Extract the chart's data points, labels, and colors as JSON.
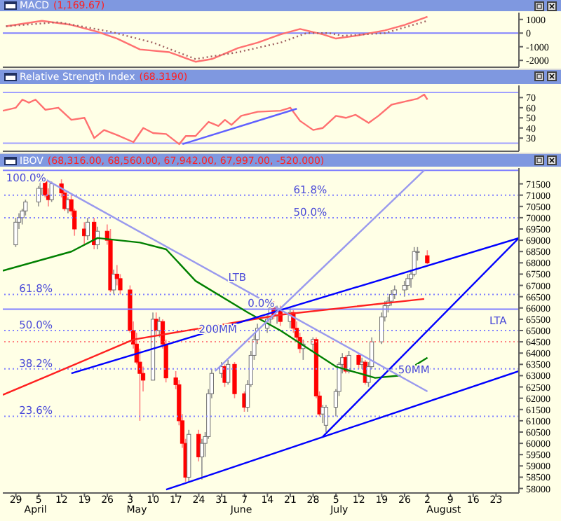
{
  "chart_data": [
    {
      "type": "line",
      "title": "MACD",
      "subtitle": "(1,169.67)",
      "tick_labels": "y",
      "xlim": [
        "--03-25",
        "--08-30"
      ],
      "ylim": [
        -2500,
        1500
      ],
      "yticks": [
        1000,
        0,
        -1000,
        -2000
      ],
      "ref_lines": [
        {
          "axis": "y",
          "value": 0,
          "color": "#8080ff",
          "line_style": "solid"
        }
      ],
      "series": [
        {
          "type": "line",
          "color": "#ff7070",
          "line_style": "solid",
          "x": [
            "--03-26",
            "--04-06",
            "--04-15",
            "--04-23",
            "--04-29",
            "--05-06",
            "--05-15",
            "--05-23",
            "--05-28",
            "--06-05",
            "--06-11",
            "--06-18",
            "--06-24",
            "--07-01",
            "--07-05",
            "--07-11",
            "--07-20",
            "--07-26",
            "--08-02"
          ],
          "values": [
            500,
            900,
            600,
            100,
            -400,
            -1200,
            -1400,
            -2100,
            -1900,
            -1100,
            -700,
            -100,
            300,
            -100,
            -400,
            -200,
            200,
            600,
            1200
          ]
        },
        {
          "type": "line",
          "color": "#a06060",
          "line_style": "dotted",
          "x": [
            "--03-26",
            "--04-11",
            "--04-27",
            "--05-10",
            "--05-23",
            "--06-05",
            "--06-18",
            "--06-26",
            "--07-03",
            "--07-07",
            "--07-20",
            "--08-02"
          ],
          "values": [
            500,
            800,
            100,
            -700,
            -1900,
            -1400,
            -700,
            0,
            0,
            -200,
            0,
            900
          ]
        }
      ]
    },
    {
      "type": "line",
      "title": "Relative Strength Index",
      "subtitle": "(68.3190)",
      "tick_labels": "y",
      "xlim": [
        "--03-25",
        "--08-30"
      ],
      "ylim": [
        17,
        82
      ],
      "yticks": [
        30,
        40,
        50,
        60,
        70
      ],
      "ref_lines": [
        {
          "axis": "y",
          "value": 75,
          "color": "#a0a0ff",
          "line_style": "solid"
        },
        {
          "axis": "y",
          "value": 25,
          "color": "#a0a0ff",
          "line_style": "solid"
        }
      ],
      "series": [
        {
          "type": "line",
          "color": "#ff7070",
          "line_style": "solid",
          "x": [
            "--03-25",
            "--03-29",
            "--03-31",
            "--04-02",
            "--04-04",
            "--04-07",
            "--04-11",
            "--04-15",
            "--04-19",
            "--04-22",
            "--04-25",
            "--04-29",
            "--05-04",
            "--05-07",
            "--05-10",
            "--05-14",
            "--05-18",
            "--05-20",
            "--05-23",
            "--05-27",
            "--05-30",
            "--06-01",
            "--06-03",
            "--06-06",
            "--06-11",
            "--06-18",
            "--06-21",
            "--06-24",
            "--06-28",
            "--07-01",
            "--07-05",
            "--07-08",
            "--07-11",
            "--07-15",
            "--07-18",
            "--07-22",
            "--07-26",
            "--07-30",
            "--08-01",
            "--08-02"
          ],
          "values": [
            57,
            60,
            68,
            65,
            68,
            58,
            60,
            48,
            50,
            30,
            38,
            33,
            26,
            40,
            35,
            34,
            24,
            32,
            32,
            46,
            42,
            48,
            43,
            52,
            56,
            57,
            60,
            47,
            38,
            40,
            52,
            50,
            53,
            45,
            52,
            63,
            66,
            69,
            73,
            68
          ]
        },
        {
          "type": "line",
          "color": "#6060ff",
          "line_style": "solid",
          "x": [
            "--05-19",
            "--06-23"
          ],
          "values": [
            24,
            59
          ]
        }
      ]
    },
    {
      "type": "candlestick",
      "title": "IBOV",
      "subtitle": "(68,316.00, 68,560.00, 67,942.00, 67,997.00, -520.000)",
      "xlim": [
        "--03-25",
        "--08-30"
      ],
      "ylim": [
        57800,
        72200
      ],
      "xticks": [
        {
          "value": "--03-29",
          "label": "29"
        },
        {
          "value": "--04-05",
          "label": "5"
        },
        {
          "value": "--04-12",
          "label": "12"
        },
        {
          "value": "--04-19",
          "label": "19"
        },
        {
          "value": "--04-26",
          "label": "26"
        },
        {
          "value": "--05-03",
          "label": "3"
        },
        {
          "value": "--05-10",
          "label": "10"
        },
        {
          "value": "--05-17",
          "label": "17"
        },
        {
          "value": "--05-24",
          "label": "24"
        },
        {
          "value": "--05-31",
          "label": "31"
        },
        {
          "value": "--06-07",
          "label": "7"
        },
        {
          "value": "--06-14",
          "label": "14"
        },
        {
          "value": "--06-21",
          "label": "21"
        },
        {
          "value": "--06-28",
          "label": "28"
        },
        {
          "value": "--07-05",
          "label": "5"
        },
        {
          "value": "--07-12",
          "label": "12"
        },
        {
          "value": "--07-19",
          "label": "19"
        },
        {
          "value": "--07-26",
          "label": "26"
        },
        {
          "value": "--08-02",
          "label": "2"
        },
        {
          "value": "--08-09",
          "label": "9"
        },
        {
          "value": "--08-16",
          "label": "16"
        },
        {
          "value": "--08-23",
          "label": "23"
        }
      ],
      "yticks": [
        58000,
        58500,
        59000,
        59500,
        60000,
        60500,
        61000,
        61500,
        62000,
        62500,
        63000,
        63500,
        64000,
        64500,
        65000,
        65500,
        66000,
        66500,
        67000,
        67500,
        68000,
        68500,
        69000,
        69500,
        70000,
        70500,
        71000,
        71500
      ],
      "x": [
        "--03-29",
        "--03-30",
        "--03-31",
        "--04-01",
        "--04-05",
        "--04-06",
        "--04-07",
        "--04-08",
        "--04-09",
        "--04-12",
        "--04-13",
        "--04-14",
        "--04-15",
        "--04-16",
        "--04-19",
        "--04-20",
        "--04-22",
        "--04-23",
        "--04-26",
        "--04-27",
        "--04-28",
        "--04-29",
        "--04-30",
        "--05-03",
        "--05-04",
        "--05-05",
        "--05-06",
        "--05-07",
        "--05-10",
        "--05-11",
        "--05-12",
        "--05-13",
        "--05-14",
        "--05-17",
        "--05-18",
        "--05-19",
        "--05-20",
        "--05-21",
        "--05-24",
        "--05-25",
        "--05-26",
        "--05-27",
        "--05-28",
        "--05-31",
        "--06-01",
        "--06-02",
        "--06-04",
        "--06-07",
        "--06-08",
        "--06-09",
        "--06-10",
        "--06-11",
        "--06-14",
        "--06-15",
        "--06-16",
        "--06-17",
        "--06-18",
        "--06-21",
        "--06-22",
        "--06-23",
        "--06-24",
        "--06-25",
        "--06-28",
        "--06-29",
        "--06-30",
        "--07-01",
        "--07-02",
        "--07-05",
        "--07-06",
        "--07-07",
        "--07-08",
        "--07-09",
        "--07-12",
        "--07-13",
        "--07-14",
        "--07-15",
        "--07-16",
        "--07-19",
        "--07-20",
        "--07-21",
        "--07-22",
        "--07-23",
        "--07-26",
        "--07-27",
        "--07-28",
        "--07-29",
        "--07-30",
        "--08-02"
      ],
      "ohlc": [
        [
          68800,
          70000,
          68700,
          69800
        ],
        [
          69800,
          70200,
          69500,
          70000
        ],
        [
          70000,
          70400,
          69700,
          70300
        ],
        [
          70300,
          70800,
          70100,
          70700
        ],
        [
          70700,
          71400,
          70500,
          71300
        ],
        [
          71300,
          71800,
          71000,
          71600
        ],
        [
          71600,
          71700,
          70900,
          71000
        ],
        [
          71000,
          71300,
          70500,
          70800
        ],
        [
          70800,
          71600,
          70700,
          71500
        ],
        [
          71500,
          71700,
          70900,
          71100
        ],
        [
          71100,
          71200,
          70300,
          70400
        ],
        [
          70400,
          70900,
          70200,
          70800
        ],
        [
          70800,
          71000,
          70100,
          70300
        ],
        [
          70300,
          70400,
          69200,
          69500
        ],
        [
          69500,
          69800,
          68800,
          69200
        ],
        [
          69200,
          70000,
          69000,
          69800
        ],
        [
          69800,
          70000,
          68600,
          68800
        ],
        [
          68800,
          69600,
          68600,
          69400
        ],
        [
          69400,
          69700,
          68800,
          69000
        ],
        [
          69000,
          69500,
          66700,
          66800
        ],
        [
          66800,
          67700,
          66600,
          67500
        ],
        [
          67500,
          67900,
          67000,
          67300
        ],
        [
          67300,
          67500,
          66600,
          66800
        ],
        [
          66800,
          67000,
          64900,
          65000
        ],
        [
          65000,
          65400,
          64200,
          64400
        ],
        [
          64400,
          64900,
          63500,
          63600
        ],
        [
          63600,
          64200,
          61000,
          63100
        ],
        [
          63100,
          63400,
          62300,
          62800
        ],
        [
          62800,
          65800,
          62800,
          65500
        ],
        [
          65500,
          65800,
          64800,
          65000
        ],
        [
          65000,
          65600,
          64700,
          65400
        ],
        [
          65400,
          65500,
          64200,
          64400
        ],
        [
          64400,
          64600,
          62700,
          62900
        ],
        [
          62900,
          63200,
          62400,
          62600
        ],
        [
          62600,
          62800,
          60800,
          61000
        ],
        [
          61000,
          61300,
          59800,
          60000
        ],
        [
          60000,
          60200,
          58300,
          58500
        ],
        [
          58500,
          60600,
          58300,
          60400
        ],
        [
          60400,
          60600,
          59200,
          59400
        ],
        [
          59400,
          60200,
          58400,
          60000
        ],
        [
          60000,
          60500,
          59400,
          60300
        ],
        [
          60300,
          62400,
          60200,
          62200
        ],
        [
          62200,
          63300,
          62000,
          63100
        ],
        [
          63100,
          63600,
          62900,
          63400
        ],
        [
          63400,
          63500,
          62500,
          62700
        ],
        [
          62700,
          63700,
          62600,
          63500
        ],
        [
          63500,
          63600,
          62000,
          62200
        ],
        [
          62200,
          62300,
          61400,
          61600
        ],
        [
          61600,
          62800,
          61400,
          62600
        ],
        [
          62600,
          64100,
          62500,
          63900
        ],
        [
          63900,
          64800,
          63700,
          64600
        ],
        [
          64600,
          65300,
          64400,
          65100
        ],
        [
          65100,
          65700,
          64900,
          65500
        ],
        [
          65500,
          66200,
          65300,
          66000
        ],
        [
          66000,
          66300,
          65500,
          65700
        ],
        [
          65700,
          66100,
          65300,
          65900
        ],
        [
          65900,
          66100,
          65200,
          65400
        ],
        [
          65400,
          66000,
          65100,
          65800
        ],
        [
          65800,
          65900,
          64900,
          65100
        ],
        [
          65100,
          65400,
          64500,
          64700
        ],
        [
          64700,
          64900,
          64000,
          64200
        ],
        [
          64200,
          64600,
          63700,
          64400
        ],
        [
          64400,
          64700,
          64100,
          64600
        ],
        [
          64600,
          64700,
          62000,
          62100
        ],
        [
          62100,
          62300,
          61200,
          61300
        ],
        [
          61300,
          61700,
          60900,
          61600
        ],
        [
          60800,
          61700,
          60500,
          61600
        ],
        [
          61600,
          62400,
          61200,
          62300
        ],
        [
          62300,
          63600,
          62100,
          63500
        ],
        [
          63500,
          64000,
          63100,
          63800
        ],
        [
          63800,
          63900,
          63100,
          63200
        ],
        [
          63200,
          64100,
          63100,
          63900
        ],
        [
          63900,
          64000,
          63300,
          63500
        ],
        [
          63500,
          63800,
          63300,
          63600
        ],
        [
          63600,
          63700,
          62600,
          62700
        ],
        [
          62700,
          63600,
          62500,
          63400
        ],
        [
          63400,
          64700,
          63300,
          64500
        ],
        [
          64500,
          65800,
          64400,
          65600
        ],
        [
          65600,
          66300,
          65400,
          66100
        ],
        [
          66100,
          66500,
          65800,
          66300
        ],
        [
          66300,
          66800,
          66100,
          66600
        ],
        [
          66600,
          67000,
          66400,
          66800
        ],
        [
          66800,
          67200,
          66500,
          67000
        ],
        [
          67000,
          67500,
          66800,
          67300
        ],
        [
          67300,
          67700,
          66900,
          67500
        ],
        [
          67500,
          68700,
          67400,
          68500
        ],
        [
          68500,
          68700,
          68100,
          68500
        ],
        [
          68316,
          68560,
          67942,
          67997
        ]
      ],
      "series": [
        {
          "type": "line",
          "color": "#008000",
          "x": [
            "--03-25",
            "--04-15",
            "--04-23",
            "--05-06",
            "--05-14",
            "--05-23",
            "--06-08",
            "--06-18",
            "--07-05",
            "--07-17",
            "--07-24",
            "--08-02"
          ],
          "values": [
            67650,
            68500,
            69100,
            68900,
            68600,
            67200,
            65800,
            65000,
            63400,
            62900,
            63000,
            63800
          ]
        },
        {
          "type": "line",
          "color": "#ff2020",
          "x": [
            "--03-25",
            "--04-08",
            "--05-04",
            "--06-18",
            "--08-01"
          ],
          "values": [
            62150,
            63000,
            64600,
            65700,
            66400
          ]
        },
        {
          "type": "line",
          "color": "#0000ff",
          "x": [
            "--04-15",
            "--08-30"
          ],
          "values": [
            63100,
            69100
          ]
        },
        {
          "type": "line",
          "color": "#0000ff",
          "x": [
            "--05-14",
            "--08-30"
          ],
          "values": [
            57950,
            63200
          ]
        },
        {
          "type": "line",
          "color": "#0000ff",
          "x": [
            "--07-01",
            "--08-30"
          ],
          "values": [
            60300,
            69100
          ]
        },
        {
          "type": "line",
          "color": "#9999ee",
          "x": [
            "--04-07",
            "--08-02"
          ],
          "values": [
            71700,
            62300
          ]
        },
        {
          "type": "line",
          "color": "#9999ee",
          "x": [
            "--05-29",
            "--08-01"
          ],
          "values": [
            63200,
            72100
          ]
        }
      ],
      "ref_lines": [
        {
          "axis": "y",
          "value": 72100,
          "color": "#8080ff",
          "line_style": "solid"
        },
        {
          "axis": "y",
          "value": 71000,
          "color": "#8080ff",
          "line_style": "dotted"
        },
        {
          "axis": "y",
          "value": 70000,
          "color": "#8080ff",
          "line_style": "dotted"
        },
        {
          "axis": "y",
          "value": 66600,
          "color": "#8080ff",
          "line_style": "dotted"
        },
        {
          "axis": "y",
          "value": 65950,
          "color": "#8080ff",
          "line_style": "solid"
        },
        {
          "axis": "y",
          "value": 65000,
          "color": "#8080ff",
          "line_style": "dotted"
        },
        {
          "axis": "y",
          "value": 64500,
          "color": "#ff8080",
          "line_style": "dotted"
        },
        {
          "axis": "y",
          "value": 63300,
          "color": "#8080ff",
          "line_style": "dotted"
        },
        {
          "axis": "y",
          "value": 61200,
          "color": "#8080ff",
          "line_style": "dotted"
        }
      ],
      "annotations": [
        {
          "text": "100.0%",
          "x": "--03-26",
          "y": 72100
        },
        {
          "text": "61.8%",
          "x": "--03-30",
          "y": 66600
        },
        {
          "text": "50.0%",
          "x": "--03-30",
          "y": 65000
        },
        {
          "text": "38.2%",
          "x": "--03-30",
          "y": 63300
        },
        {
          "text": "23.6%",
          "x": "--03-30",
          "y": 61200
        },
        {
          "text": "61.8%",
          "x": "--06-22",
          "y": 71000
        },
        {
          "text": "50.0%",
          "x": "--06-22",
          "y": 70000
        },
        {
          "text": "0.0%",
          "x": "--06-08",
          "y": 65950
        },
        {
          "text": "LTB",
          "x": "--06-02",
          "y": 67100
        },
        {
          "text": "200MM",
          "x": "--05-24",
          "y": 64800
        },
        {
          "text": "50MM",
          "x": "--07-24",
          "y": 63000
        },
        {
          "text": "LTA",
          "x": "--08-21",
          "y": 65200
        }
      ],
      "x2lim": [
        "--03-25",
        "--08-30"
      ],
      "x2ticks": [
        {
          "value": "--04-04",
          "label": "April"
        },
        {
          "value": "--05-05",
          "label": "May"
        },
        {
          "value": "--06-06",
          "label": "June"
        },
        {
          "value": "--07-06",
          "label": "July"
        },
        {
          "value": "--08-07",
          "label": "August"
        }
      ]
    }
  ]
}
